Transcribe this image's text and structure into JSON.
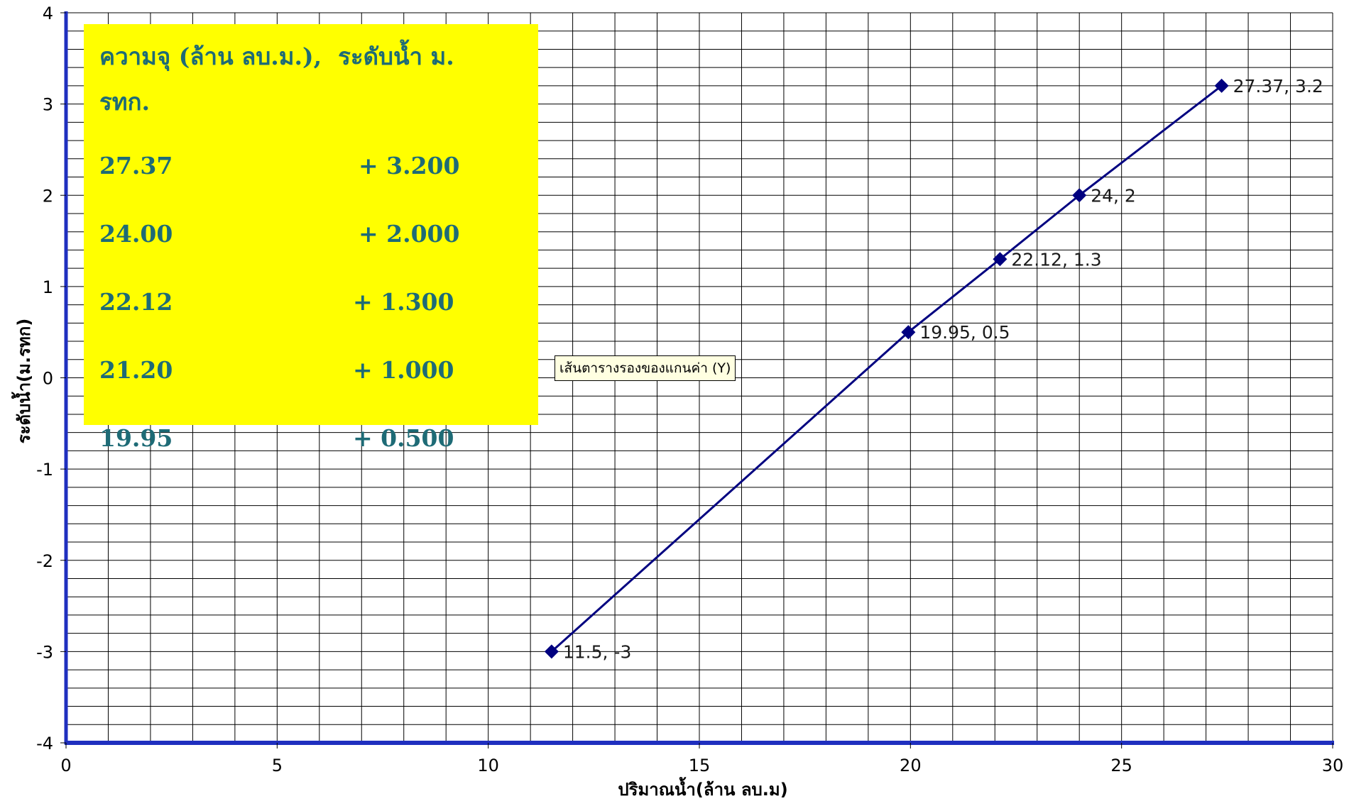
{
  "chart_data": {
    "type": "line",
    "xlabel": "ปริมาณน้ำ(ล้าน ลบ.ม)",
    "ylabel": "ระดับน้ำ(ม.รทก)",
    "xlim": [
      0,
      30
    ],
    "ylim": [
      -4,
      4
    ],
    "x_ticks": [
      "0",
      "5",
      "10",
      "15",
      "20",
      "25",
      "30"
    ],
    "y_ticks": [
      "4",
      "3",
      "2",
      "1",
      "0",
      "-1",
      "-2",
      "-3",
      "-4"
    ],
    "grid": true,
    "series": [
      {
        "color": "#000080",
        "marker": "diamond",
        "points": [
          {
            "x": 11.5,
            "y": -3,
            "label": "11.5, -3"
          },
          {
            "x": 19.95,
            "y": 0.5,
            "label": "19.95, 0.5"
          },
          {
            "x": 22.12,
            "y": 1.3,
            "label": "22.12, 1.3"
          },
          {
            "x": 24,
            "y": 2,
            "label": "24, 2"
          },
          {
            "x": 27.37,
            "y": 3.2,
            "label": "27.37, 3.2"
          }
        ]
      }
    ]
  },
  "tooltip": "เส้นตารางรองของแกนค่า (Y)",
  "table": {
    "header_volume": "ความจุ (ล้าน ลบ.ม.),",
    "header_level": "ระดับน้ำ ม. รทก.",
    "rows": [
      {
        "volume": "27.37",
        "level": "+ 3.200"
      },
      {
        "volume": "24.00",
        "level": "+ 2.000"
      },
      {
        "volume": "22.12",
        "level": "+ 1.300"
      },
      {
        "volume": "21.20",
        "level": "+ 1.000"
      },
      {
        "volume": "19.95",
        "level": "+ 0.500"
      }
    ]
  },
  "colors": {
    "axis": "#1f2fbf",
    "line": "#000080",
    "table_background": "#ffff00",
    "table_text": "#1e6b76"
  }
}
